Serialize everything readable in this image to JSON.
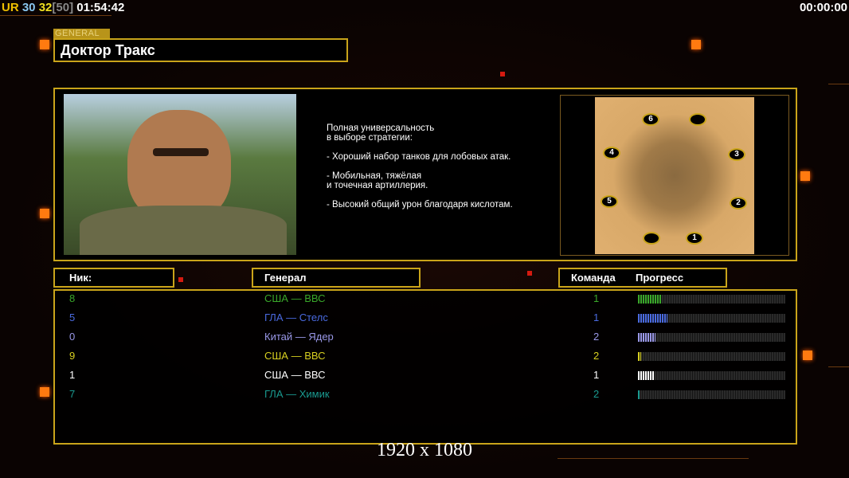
{
  "hud": {
    "ur": "UR",
    "v1": "30",
    "v2": "32",
    "bracket": "[50]",
    "time": "01:54:42",
    "clock": "00:00:00"
  },
  "general": {
    "tag": "GENERAL",
    "name": "Доктор Тракс",
    "description": [
      "Полная универсальность",
      "в выборе стратегии:",
      "",
      "- Хороший набор танков для лобовых атак.",
      "",
      "- Мобильная, тяжёлая",
      "и точечная артиллерия.",
      "",
      "- Высокий общий урон благодаря кислотам."
    ]
  },
  "map": {
    "spawns": [
      "6",
      "",
      "4",
      "3",
      "5",
      "2",
      "",
      "1"
    ]
  },
  "table": {
    "headers": {
      "nick": "Ник:",
      "general": "Генерал",
      "team": "Команда",
      "progress": "Прогресс"
    },
    "rows": [
      {
        "nick": "8",
        "general": "США — ВВС",
        "team": "1",
        "progress": 16,
        "color": "#3aa82a"
      },
      {
        "nick": "5",
        "general": "ГЛА — Стелс",
        "team": "1",
        "progress": 20,
        "color": "#4a6ae0"
      },
      {
        "nick": "0",
        "general": "Китай — Ядер",
        "team": "2",
        "progress": 12,
        "color": "#9a98e8"
      },
      {
        "nick": "9",
        "general": "США — ВВС",
        "team": "2",
        "progress": 2,
        "color": "#d8d020"
      },
      {
        "nick": "1",
        "general": "США — ВВС",
        "team": "1",
        "progress": 11,
        "color": "#ffffff"
      },
      {
        "nick": "7",
        "general": "ГЛА — Химик",
        "team": "2",
        "progress": 1,
        "color": "#1a9a90"
      }
    ]
  },
  "resolution": "1920 x 1080",
  "colors": {
    "accent": "#c9a41a",
    "orange": "#ff7a10"
  }
}
